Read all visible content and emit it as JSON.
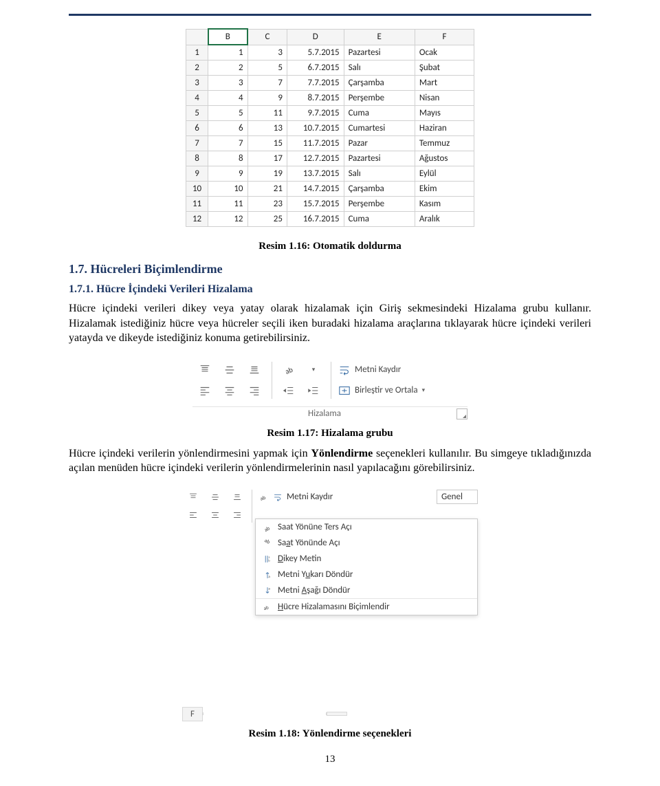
{
  "colors": {
    "rule": "#1f3864",
    "headings": "#1f3864",
    "cell_border": "#d0d0d0",
    "selection": "#1f7246",
    "text": "#000000"
  },
  "caption16": "Resim 1.16: Otomatik doldurma",
  "h2": "1.7. Hücreleri Biçimlendirme",
  "h3": "1.7.1. Hücre İçindeki Verileri Hizalama",
  "para1": "Hücre içindeki verileri dikey veya yatay olarak hizalamak için Giriş sekmesindeki Hizalama grubu kullanır. Hizalamak istediğiniz hücre veya hücreler seçili iken buradaki hizalama araçlarına tıklayarak hücre içindeki verileri yatayda ve dikeyde istediğiniz konuma getirebilirsiniz.",
  "caption17": "Resim 1.17: Hizalama grubu",
  "para2_pre": "Hücre içindeki verilerin yönlendirmesini yapmak için ",
  "para2_bold": "Yönlendirme",
  "para2_post": " seçenekleri kullanılır. Bu simgeye tıkladığınızda açılan menüden hücre içindeki verilerin yönlendirmelerinin nasıl yapılacağını görebilirsiniz.",
  "caption18": "Resim 1.18: Yönlendirme seçenekleri",
  "page_number": "13",
  "excel": {
    "column_letters": [
      "B",
      "C",
      "D",
      "E",
      "F"
    ],
    "rows": [
      {
        "n": 1,
        "B": 1,
        "C": 3,
        "D": "5.7.2015",
        "E": "Pazartesi",
        "F": "Ocak"
      },
      {
        "n": 2,
        "B": 2,
        "C": 5,
        "D": "6.7.2015",
        "E": "Salı",
        "F": "Şubat"
      },
      {
        "n": 3,
        "B": 3,
        "C": 7,
        "D": "7.7.2015",
        "E": "Çarşamba",
        "F": "Mart"
      },
      {
        "n": 4,
        "B": 4,
        "C": 9,
        "D": "8.7.2015",
        "E": "Perşembe",
        "F": "Nisan"
      },
      {
        "n": 5,
        "B": 5,
        "C": 11,
        "D": "9.7.2015",
        "E": "Cuma",
        "F": "Mayıs"
      },
      {
        "n": 6,
        "B": 6,
        "C": 13,
        "D": "10.7.2015",
        "E": "Cumartesi",
        "F": "Haziran"
      },
      {
        "n": 7,
        "B": 7,
        "C": 15,
        "D": "11.7.2015",
        "E": "Pazar",
        "F": "Temmuz"
      },
      {
        "n": 8,
        "B": 8,
        "C": 17,
        "D": "12.7.2015",
        "E": "Pazartesi",
        "F": "Ağustos"
      },
      {
        "n": 9,
        "B": 9,
        "C": 19,
        "D": "13.7.2015",
        "E": "Salı",
        "F": "Eylül"
      },
      {
        "n": 10,
        "B": 10,
        "C": 21,
        "D": "14.7.2015",
        "E": "Çarşamba",
        "F": "Ekim"
      },
      {
        "n": 11,
        "B": 11,
        "C": 23,
        "D": "15.7.2015",
        "E": "Perşembe",
        "F": "Kasım"
      },
      {
        "n": 12,
        "B": 12,
        "C": 25,
        "D": "16.7.2015",
        "E": "Cuma",
        "F": "Aralık"
      }
    ]
  },
  "ribbon": {
    "wrap_label": "Metni Kaydır",
    "merge_label": "Birleştir ve Ortala",
    "group_name": "Hizalama"
  },
  "orient": {
    "wrap_label": "Metni Kaydır",
    "general_label": "Genel",
    "foot_col": "F",
    "menu": [
      "Saat Yönüne Ters Açı",
      "Saat Yönünde Açı",
      "Dikey Metin",
      "Metni Yukarı Döndür",
      "Metni Aşağı Döndür",
      "Hücre Hizalamasını Biçimlendir"
    ]
  }
}
